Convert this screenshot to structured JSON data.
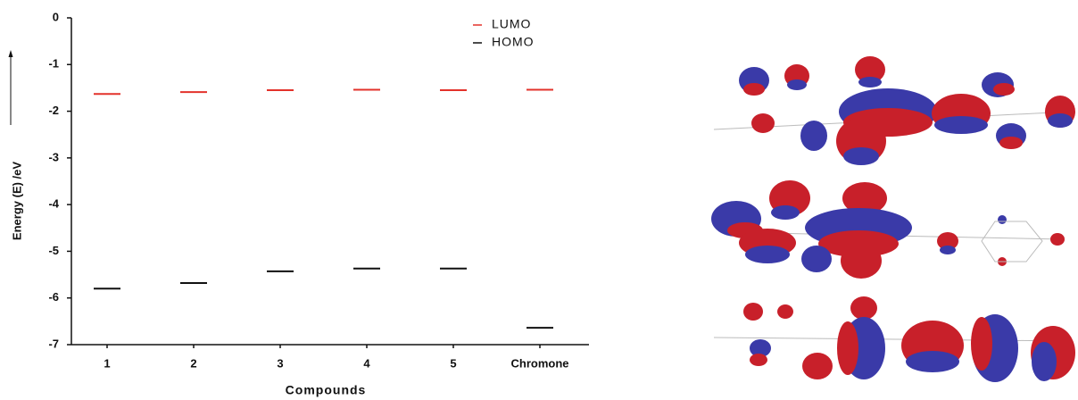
{
  "chart_data": {
    "type": "level",
    "x_label": "Compounds",
    "y_label": "Energy (E) /eV",
    "categories": [
      "1",
      "2",
      "3",
      "4",
      "5",
      "Chromone"
    ],
    "series": [
      {
        "name": "LUMO",
        "color": "#e3322b",
        "values": [
          -1.63,
          -1.59,
          -1.55,
          -1.54,
          -1.55,
          -1.54
        ]
      },
      {
        "name": "HOMO",
        "color": "#111111",
        "values": [
          -5.8,
          -5.68,
          -5.43,
          -5.37,
          -5.37,
          -6.64
        ]
      }
    ],
    "ylim": [
      -7,
      0
    ],
    "yticks": [
      0,
      -1,
      -2,
      -3,
      -4,
      -5,
      -6,
      -7
    ]
  }
}
